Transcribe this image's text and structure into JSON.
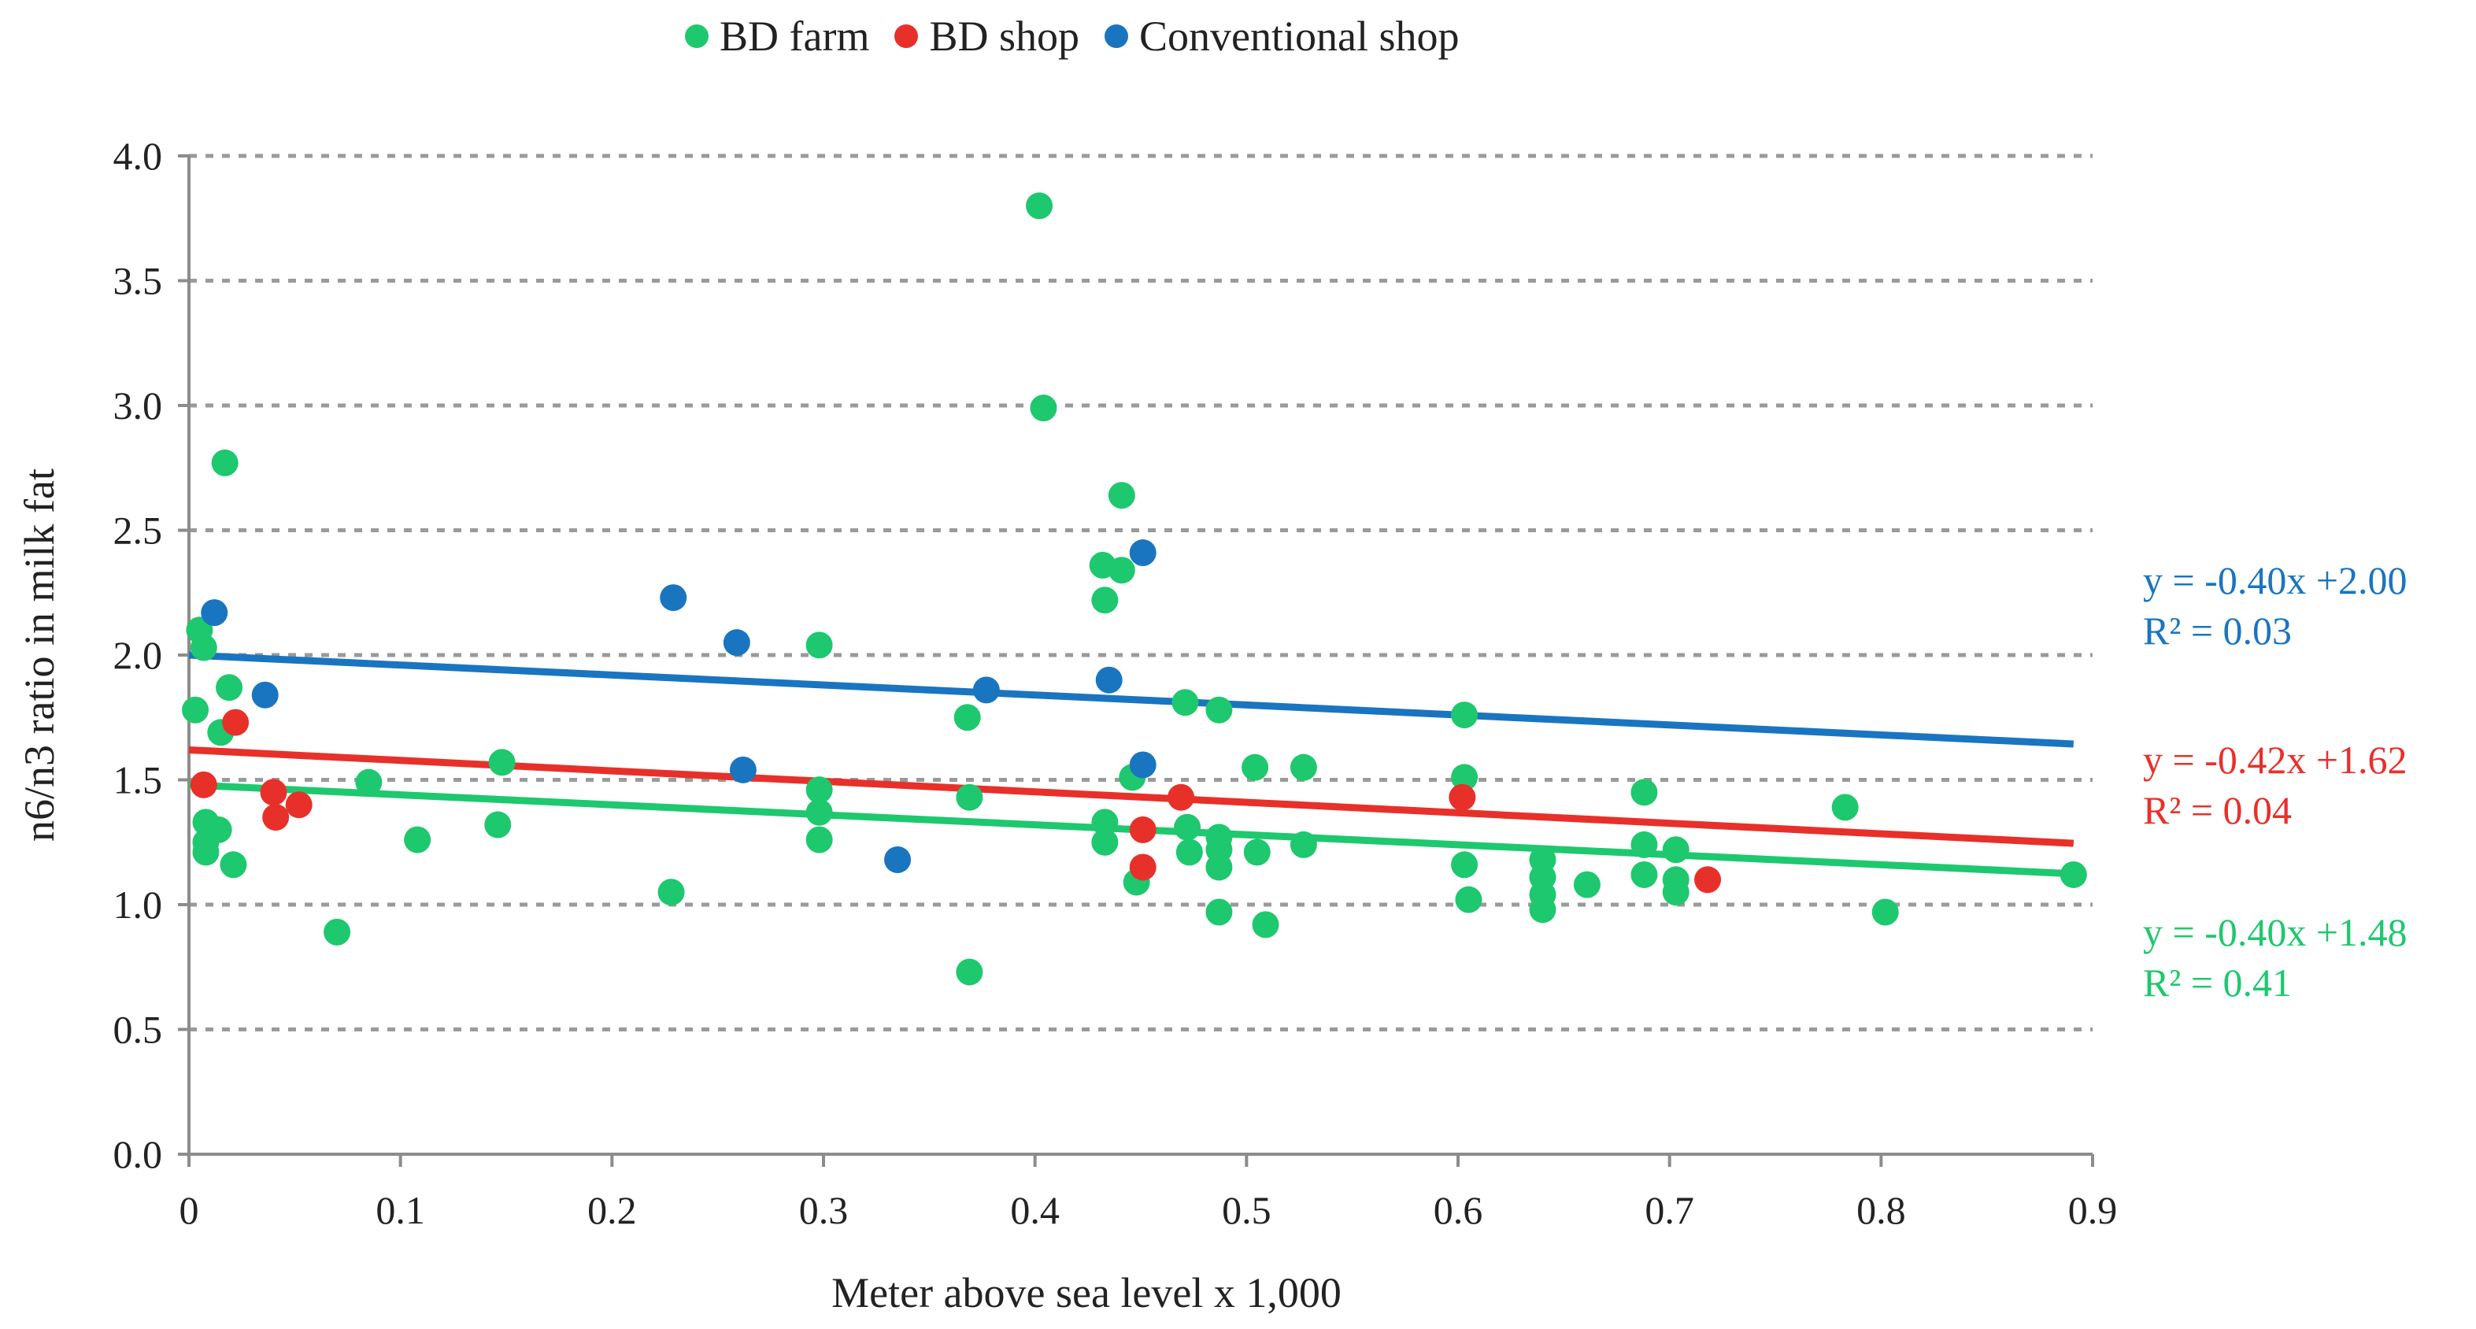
{
  "chart_data": {
    "type": "scatter",
    "title": "",
    "xlabel": "Meter above sea level x 1,000",
    "ylabel": "n6/n3 ratio in milk fat",
    "xlim": [
      0,
      0.9
    ],
    "ylim": [
      0,
      4.0
    ],
    "x_ticks": [
      "0",
      "0.1",
      "0.2",
      "0.3",
      "0.4",
      "0.5",
      "0.6",
      "0.7",
      "0.8",
      "0.9"
    ],
    "y_ticks": [
      "0.0",
      "0.5",
      "1.0",
      "1.5",
      "2.0",
      "2.5",
      "3.0",
      "3.5",
      "4.0"
    ],
    "grid": "horizontal dashed",
    "legend_position": "top",
    "series": [
      {
        "name": "BD farm",
        "color": "#1ec86e",
        "points": [
          [
            0.003,
            1.78
          ],
          [
            0.005,
            2.1
          ],
          [
            0.007,
            2.03
          ],
          [
            0.008,
            1.33
          ],
          [
            0.008,
            1.25
          ],
          [
            0.008,
            1.21
          ],
          [
            0.01,
            1.29
          ],
          [
            0.014,
            1.3
          ],
          [
            0.015,
            1.69
          ],
          [
            0.017,
            2.77
          ],
          [
            0.019,
            1.87
          ],
          [
            0.021,
            1.16
          ],
          [
            0.07,
            0.89
          ],
          [
            0.085,
            1.49
          ],
          [
            0.108,
            1.26
          ],
          [
            0.146,
            1.32
          ],
          [
            0.148,
            1.57
          ],
          [
            0.228,
            1.05
          ],
          [
            0.298,
            2.04
          ],
          [
            0.298,
            1.46
          ],
          [
            0.298,
            1.37
          ],
          [
            0.298,
            1.26
          ],
          [
            0.368,
            1.75
          ],
          [
            0.369,
            1.43
          ],
          [
            0.369,
            0.73
          ],
          [
            0.402,
            3.8
          ],
          [
            0.404,
            2.99
          ],
          [
            0.432,
            2.36
          ],
          [
            0.433,
            2.22
          ],
          [
            0.433,
            1.33
          ],
          [
            0.433,
            1.25
          ],
          [
            0.441,
            2.64
          ],
          [
            0.441,
            2.34
          ],
          [
            0.446,
            1.51
          ],
          [
            0.448,
            1.09
          ],
          [
            0.471,
            1.81
          ],
          [
            0.472,
            1.31
          ],
          [
            0.473,
            1.21
          ],
          [
            0.487,
            1.78
          ],
          [
            0.487,
            1.27
          ],
          [
            0.487,
            1.22
          ],
          [
            0.487,
            1.15
          ],
          [
            0.487,
            0.97
          ],
          [
            0.504,
            1.55
          ],
          [
            0.505,
            1.21
          ],
          [
            0.509,
            0.92
          ],
          [
            0.527,
            1.55
          ],
          [
            0.527,
            1.24
          ],
          [
            0.603,
            1.76
          ],
          [
            0.603,
            1.51
          ],
          [
            0.603,
            1.16
          ],
          [
            0.605,
            1.02
          ],
          [
            0.64,
            1.18
          ],
          [
            0.64,
            1.11
          ],
          [
            0.64,
            1.04
          ],
          [
            0.64,
            0.98
          ],
          [
            0.661,
            1.08
          ],
          [
            0.688,
            1.45
          ],
          [
            0.688,
            1.24
          ],
          [
            0.688,
            1.12
          ],
          [
            0.703,
            1.22
          ],
          [
            0.703,
            1.1
          ],
          [
            0.703,
            1.05
          ],
          [
            0.783,
            1.39
          ],
          [
            0.802,
            0.97
          ],
          [
            0.891,
            1.12
          ]
        ],
        "trendline": {
          "slope": -0.4,
          "intercept": 1.48,
          "x_range": [
            0,
            0.891
          ]
        },
        "equation": "y = -0.40x +1.48",
        "r2": "R² = 0.41"
      },
      {
        "name": "BD shop",
        "color": "#e8302a",
        "points": [
          [
            0.007,
            1.48
          ],
          [
            0.022,
            1.73
          ],
          [
            0.04,
            1.45
          ],
          [
            0.041,
            1.35
          ],
          [
            0.052,
            1.4
          ],
          [
            0.451,
            1.3
          ],
          [
            0.451,
            1.15
          ],
          [
            0.469,
            1.43
          ],
          [
            0.602,
            1.43
          ],
          [
            0.718,
            1.1
          ]
        ],
        "trendline": {
          "slope": -0.42,
          "intercept": 1.62,
          "x_range": [
            0,
            0.891
          ]
        },
        "equation": "y = -0.42x +1.62",
        "r2": "R² = 0.04"
      },
      {
        "name": "Conventional shop",
        "color": "#1a75c0",
        "points": [
          [
            0.012,
            2.17
          ],
          [
            0.036,
            1.84
          ],
          [
            0.229,
            2.23
          ],
          [
            0.259,
            2.05
          ],
          [
            0.262,
            1.54
          ],
          [
            0.335,
            1.18
          ],
          [
            0.377,
            1.86
          ],
          [
            0.435,
            1.9
          ],
          [
            0.451,
            2.41
          ],
          [
            0.451,
            1.56
          ]
        ],
        "trendline": {
          "slope": -0.4,
          "intercept": 2.0,
          "x_range": [
            0,
            0.891
          ]
        },
        "equation": "y = -0.40x +2.00",
        "r2": "R² = 0.03"
      }
    ]
  }
}
